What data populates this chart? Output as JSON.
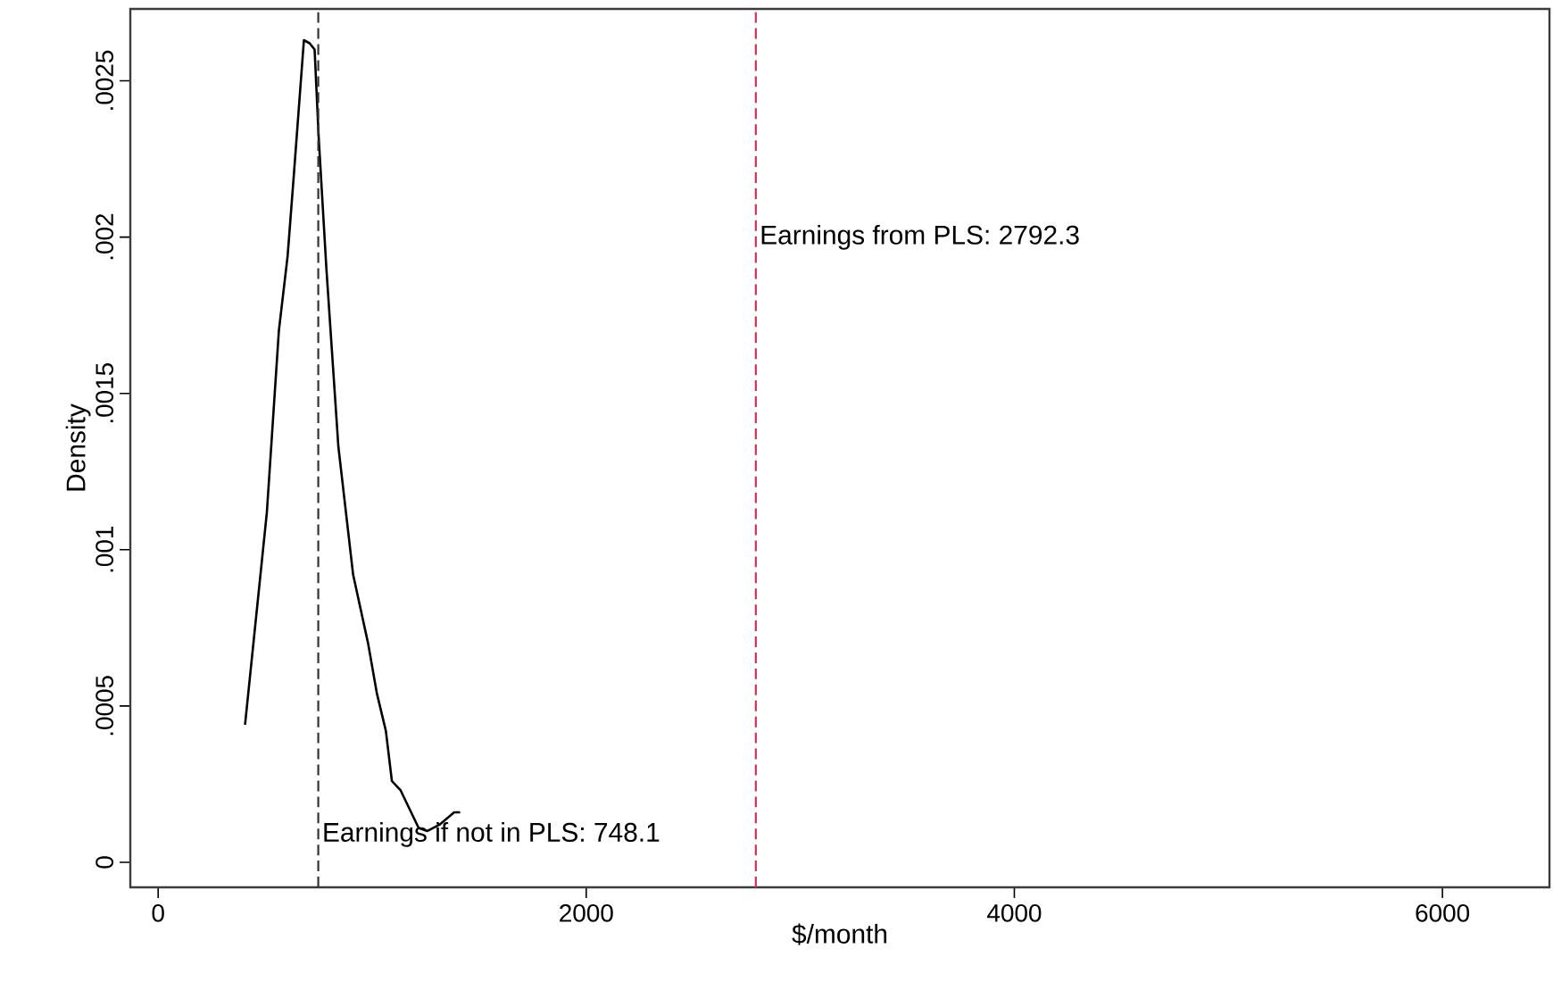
{
  "chart_data": {
    "type": "line",
    "xlabel": "$/month",
    "ylabel": "Density",
    "x": [
      406,
      508,
      564,
      605,
      633,
      681,
      708,
      731,
      750,
      786,
      842,
      911,
      981,
      1022,
      1064,
      1092,
      1133,
      1217,
      1258,
      1314,
      1383,
      1411
    ],
    "series": [
      {
        "color": "#000000",
        "values": [
          0.00044,
          0.00112,
          0.0017,
          0.00194,
          0.00219,
          0.00263,
          0.00262,
          0.0026,
          0.00232,
          0.0019,
          0.00133,
          0.00092,
          0.0007,
          0.00054,
          0.00042,
          0.00026,
          0.00023,
          0.00011,
          0.0001,
          0.00012,
          0.00016,
          0.00016
        ]
      }
    ],
    "xlim": [
      -130,
      6500
    ],
    "ylim": [
      -8e-05,
      0.00273
    ],
    "xticks": [
      0,
      2000,
      4000,
      6000
    ],
    "yticks": [
      0,
      {
        "value": 0.0005,
        "label": ".0005"
      },
      {
        "value": 0.001,
        "label": ".001"
      },
      {
        "value": 0.0015,
        "label": ".0015"
      },
      {
        "value": 0.002,
        "label": ".002"
      },
      {
        "value": 0.0025,
        "label": ".0025"
      }
    ],
    "ref_lines": [
      {
        "axis": "x",
        "value": 748.1,
        "label": "Earnings if not in PLS: 748.1",
        "color": "#333333",
        "line_style": "dashed"
      },
      {
        "axis": "x",
        "value": 2792.3,
        "label": "Earnings from PLS: 2792.3",
        "color": "#d62d5b",
        "line_style": "dashed"
      }
    ],
    "grid": false,
    "marker": "none",
    "line_style": "solid"
  }
}
